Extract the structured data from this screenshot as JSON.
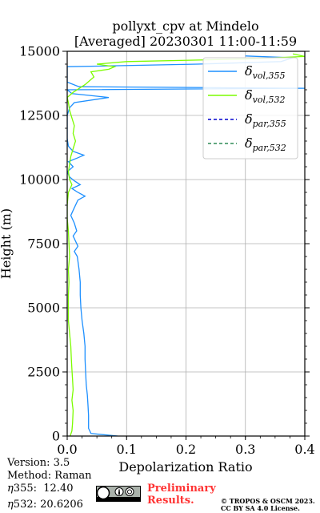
{
  "chart_data": {
    "type": "line",
    "title_line1": "pollyxt_cpv at Mindelo",
    "title_line2": "[Averaged] 20230301 11:00-11:59",
    "xlabel": "Depolarization Ratio",
    "ylabel": "Height (m)",
    "xlim": [
      0,
      0.4
    ],
    "ylim": [
      0,
      15000
    ],
    "xticks": [
      "0.0",
      "0.1",
      "0.2",
      "0.3",
      "0.4"
    ],
    "yticks": [
      "0",
      "2500",
      "5000",
      "7500",
      "10000",
      "12500",
      "15000"
    ],
    "grid": true,
    "legend_position": "top-right",
    "series": [
      {
        "name": "δvol,355",
        "color": "#1e90ff",
        "dash": "",
        "points": [
          [
            0.085,
            0
          ],
          [
            0.04,
            100
          ],
          [
            0.036,
            300
          ],
          [
            0.036,
            800
          ],
          [
            0.035,
            1200
          ],
          [
            0.034,
            1600
          ],
          [
            0.032,
            2000
          ],
          [
            0.031,
            2500
          ],
          [
            0.03,
            3000
          ],
          [
            0.03,
            3500
          ],
          [
            0.028,
            4000
          ],
          [
            0.025,
            4500
          ],
          [
            0.023,
            5000
          ],
          [
            0.022,
            5500
          ],
          [
            0.022,
            6000
          ],
          [
            0.02,
            6500
          ],
          [
            0.017,
            7000
          ],
          [
            0.012,
            7200
          ],
          [
            0.018,
            7400
          ],
          [
            0.014,
            7600
          ],
          [
            0.01,
            7800
          ],
          [
            0.016,
            8000
          ],
          [
            0.012,
            8300
          ],
          [
            0.006,
            8600
          ],
          [
            0.012,
            8900
          ],
          [
            0.018,
            9200
          ],
          [
            0.03,
            9350
          ],
          [
            0.018,
            9500
          ],
          [
            0.008,
            9650
          ],
          [
            0.022,
            9800
          ],
          [
            0.012,
            9950
          ],
          [
            0.004,
            10100
          ],
          [
            0.0,
            10300
          ],
          [
            0.01,
            10500
          ],
          [
            0.002,
            10700
          ],
          [
            0.018,
            10850
          ],
          [
            0.028,
            10950
          ],
          [
            0.01,
            11100
          ],
          [
            0.002,
            11300
          ],
          [
            0.0,
            11600
          ],
          [
            0.0,
            12000
          ],
          [
            0.0,
            12500
          ],
          [
            0.004,
            12800
          ],
          [
            0.012,
            13000
          ],
          [
            0.07,
            13200
          ],
          [
            0.008,
            13350
          ],
          [
            0.0,
            13500
          ],
          [
            0.4,
            13560
          ],
          [
            0.02,
            13620
          ],
          [
            0.0,
            13800
          ],
          [
            0.0,
            14100
          ],
          [
            0.0,
            14400
          ],
          [
            0.22,
            14500
          ],
          [
            0.36,
            14600
          ],
          [
            0.38,
            14750
          ],
          [
            0.3,
            14820
          ]
        ]
      },
      {
        "name": "δvol,532",
        "color": "#7cfc00",
        "dash": "",
        "points": [
          [
            0.005,
            0
          ],
          [
            0.008,
            200
          ],
          [
            0.009,
            500
          ],
          [
            0.01,
            1000
          ],
          [
            0.008,
            1400
          ],
          [
            0.01,
            1800
          ],
          [
            0.009,
            2200
          ],
          [
            0.008,
            2600
          ],
          [
            0.007,
            3000
          ],
          [
            0.006,
            3500
          ],
          [
            0.004,
            4000
          ],
          [
            0.002,
            4500
          ],
          [
            0.002,
            5000
          ],
          [
            0.002,
            5500
          ],
          [
            0.003,
            6000
          ],
          [
            0.002,
            6500
          ],
          [
            0.004,
            7000
          ],
          [
            0.003,
            7500
          ],
          [
            0.002,
            8000
          ],
          [
            0.0,
            8500
          ],
          [
            0.0,
            9000
          ],
          [
            0.002,
            9500
          ],
          [
            0.008,
            9800
          ],
          [
            0.004,
            10000
          ],
          [
            0.002,
            10300
          ],
          [
            0.004,
            10600
          ],
          [
            0.006,
            10900
          ],
          [
            0.01,
            11200
          ],
          [
            0.014,
            11500
          ],
          [
            0.01,
            11800
          ],
          [
            0.012,
            12100
          ],
          [
            0.008,
            12400
          ],
          [
            0.004,
            12700
          ],
          [
            0.002,
            13000
          ],
          [
            0.0,
            13200
          ],
          [
            0.01,
            13400
          ],
          [
            0.03,
            13700
          ],
          [
            0.045,
            14000
          ],
          [
            0.04,
            14200
          ],
          [
            0.07,
            14300
          ],
          [
            0.08,
            14400
          ],
          [
            0.05,
            14500
          ],
          [
            0.1,
            14600
          ],
          [
            0.3,
            14700
          ],
          [
            0.4,
            14800
          ],
          [
            0.38,
            14900
          ]
        ]
      },
      {
        "name": "δpar,355",
        "color": "#0000cd",
        "dash": "5,4",
        "points": []
      },
      {
        "name": "δpar,532",
        "color": "#2e8b57",
        "dash": "5,4",
        "points": []
      }
    ]
  },
  "footer": {
    "version": "Version: 3.5",
    "method": "Method: Raman",
    "eta355_label": "355:",
    "eta355_value": "12.40",
    "eta532_label": "532:",
    "eta532_value": "20.6206",
    "eta_symbol": "η",
    "prelim_line1": "Preliminary",
    "prelim_line2": "Results.",
    "copyright_line1": "© TROPOS & OSCM 2023.",
    "copyright_line2": "CC BY SA 4.0 License.",
    "license_badge": "cc-by-sa-icon"
  }
}
